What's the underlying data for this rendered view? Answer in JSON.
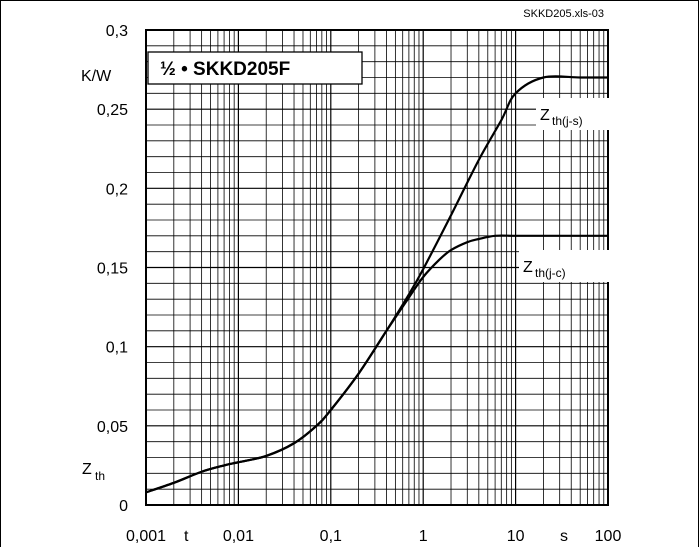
{
  "chart_data": {
    "type": "line",
    "title": "½ • SKKD205F",
    "source_note": "SKKD205.xls-03",
    "xlabel": "t",
    "xunit": "s",
    "ylabel": "Zth",
    "yunit": "K/W",
    "xscale": "log",
    "xlim": [
      0.001,
      100
    ],
    "ylim": [
      0,
      0.3
    ],
    "grid": true,
    "x_tick_labels": [
      "0,001",
      "0,01",
      "0,1",
      "1",
      "10",
      "100"
    ],
    "y_tick_labels": [
      "0",
      "0,05",
      "0,1",
      "0,15",
      "0,2",
      "0,25",
      "0,3"
    ],
    "series": [
      {
        "name": "Zth(j-s)",
        "label_main": "Z",
        "label_sub": "th(j-s)",
        "x": [
          0.001,
          0.002,
          0.004,
          0.007,
          0.01,
          0.02,
          0.04,
          0.07,
          0.1,
          0.2,
          0.4,
          0.7,
          1,
          2,
          4,
          7,
          10,
          20,
          50,
          100
        ],
        "y": [
          0.008,
          0.014,
          0.021,
          0.025,
          0.027,
          0.031,
          0.039,
          0.05,
          0.06,
          0.083,
          0.11,
          0.133,
          0.149,
          0.183,
          0.218,
          0.243,
          0.26,
          0.27,
          0.27,
          0.27
        ]
      },
      {
        "name": "Zth(j-c)",
        "label_main": "Z",
        "label_sub": "th(j-c)",
        "x": [
          0.001,
          0.002,
          0.004,
          0.007,
          0.01,
          0.02,
          0.04,
          0.07,
          0.1,
          0.2,
          0.4,
          0.7,
          1,
          1.5,
          2,
          3,
          4,
          6,
          10,
          20,
          50,
          100
        ],
        "y": [
          0.008,
          0.014,
          0.021,
          0.025,
          0.027,
          0.031,
          0.039,
          0.05,
          0.06,
          0.083,
          0.11,
          0.131,
          0.144,
          0.155,
          0.161,
          0.166,
          0.168,
          0.17,
          0.17,
          0.17,
          0.17,
          0.17
        ]
      }
    ]
  }
}
